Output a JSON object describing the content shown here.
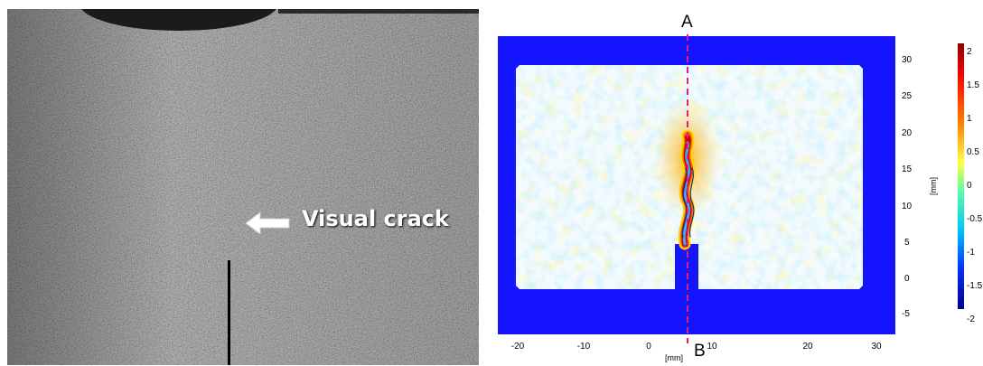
{
  "photo": {
    "crack_label": "Visual crack",
    "arrow_icon": "left-arrow-icon"
  },
  "dic": {
    "line_top_label": "A",
    "line_bottom_label": "B",
    "x_unit": "[mm]",
    "y_unit": "[mm]",
    "x_ticks": [
      "-20",
      "-10",
      "0",
      "10",
      "20",
      "30"
    ],
    "y_ticks": [
      "30",
      "25",
      "20",
      "15",
      "10",
      "5",
      "0",
      "-5"
    ],
    "colorbar_ticks": [
      "2",
      "1.5",
      "1",
      "0.5",
      "0",
      "-0.5",
      "-1",
      "-1.5",
      "-2"
    ],
    "colors": {
      "background": "#1414ff",
      "dashed_line": "#e0207a",
      "colormap": [
        "#00008f",
        "#0030ff",
        "#00c8ff",
        "#60ffa0",
        "#ffff40",
        "#ff8000",
        "#ff0000",
        "#8f0000"
      ]
    }
  }
}
